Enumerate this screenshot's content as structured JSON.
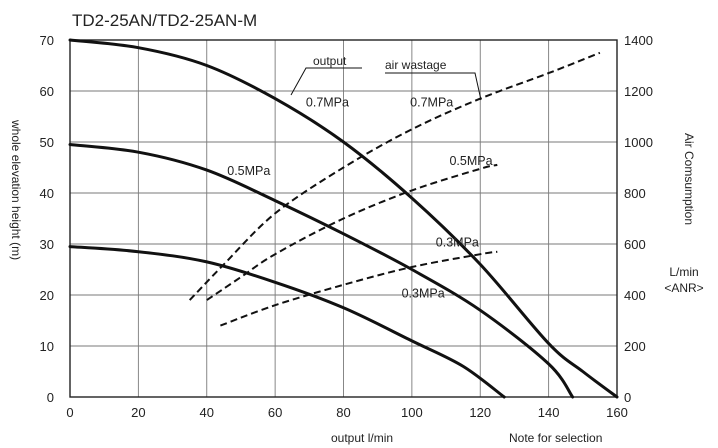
{
  "chart_data": {
    "type": "line",
    "title": "TD2-25AN/TD2-25AN-M",
    "xlabel": "output l/min",
    "ylabel": "whole elevation height (m)",
    "y2label": "Air Comsumption",
    "y2unit_line1": "L/min",
    "y2unit_line2": "<ANR>",
    "footnote": "Note for selection",
    "xlim": [
      0,
      160
    ],
    "ylim": [
      0,
      70
    ],
    "y2lim": [
      0,
      1400
    ],
    "xticks": [
      0,
      20,
      40,
      60,
      80,
      100,
      120,
      140,
      160
    ],
    "yticks": [
      0,
      10,
      20,
      30,
      40,
      50,
      60,
      70
    ],
    "y2ticks": [
      0,
      200,
      400,
      600,
      800,
      1000,
      1200,
      1400
    ],
    "grid": true,
    "group_labels": {
      "output": "output",
      "air_wastage": "air wastage"
    },
    "series": [
      {
        "name": "0.7MPa",
        "group": "output",
        "axis": "left",
        "style": "solid",
        "x": [
          0,
          20,
          40,
          60,
          80,
          100,
          120,
          140,
          150,
          160
        ],
        "y": [
          70,
          68.5,
          65,
          58.5,
          50,
          39,
          26,
          10.5,
          5,
          0
        ]
      },
      {
        "name": "0.5MPa",
        "group": "output",
        "axis": "left",
        "style": "solid",
        "x": [
          0,
          20,
          40,
          60,
          80,
          100,
          120,
          140,
          147
        ],
        "y": [
          49.5,
          48,
          44.5,
          38.5,
          32,
          25,
          17,
          6.5,
          0
        ]
      },
      {
        "name": "0.3MPa",
        "group": "output",
        "axis": "left",
        "style": "solid",
        "x": [
          0,
          20,
          40,
          60,
          80,
          100,
          115,
          127
        ],
        "y": [
          29.5,
          28.5,
          26.5,
          22.5,
          17.5,
          11,
          6,
          0
        ]
      },
      {
        "name": "0.7MPa",
        "group": "air wastage",
        "axis": "right",
        "style": "dashed",
        "x": [
          35,
          45,
          60,
          80,
          100,
          120,
          140,
          155
        ],
        "y": [
          380,
          520,
          720,
          900,
          1050,
          1170,
          1270,
          1350
        ]
      },
      {
        "name": "0.5MPa",
        "group": "air wastage",
        "axis": "right",
        "style": "dashed",
        "x": [
          40,
          50,
          60,
          80,
          100,
          120,
          125
        ],
        "y": [
          380,
          470,
          560,
          700,
          810,
          895,
          910
        ]
      },
      {
        "name": "0.3MPa",
        "group": "air wastage",
        "axis": "right",
        "style": "dashed",
        "x": [
          44,
          60,
          80,
          100,
          120,
          125
        ],
        "y": [
          280,
          360,
          440,
          510,
          560,
          570
        ]
      }
    ],
    "annotations": [
      {
        "text": "0.7MPa",
        "x": 69,
        "y": 57
      },
      {
        "text": "0.7MPa",
        "x": 99.5,
        "y": 57
      },
      {
        "text": "0.5MPa",
        "x": 46,
        "y": 43.5
      },
      {
        "text": "0.5MPa",
        "x": 111,
        "y": 45.5
      },
      {
        "text": "0.3MPa",
        "x": 107,
        "y": 29.5
      },
      {
        "text": "0.3MPa",
        "x": 97,
        "y": 19.5
      }
    ]
  }
}
